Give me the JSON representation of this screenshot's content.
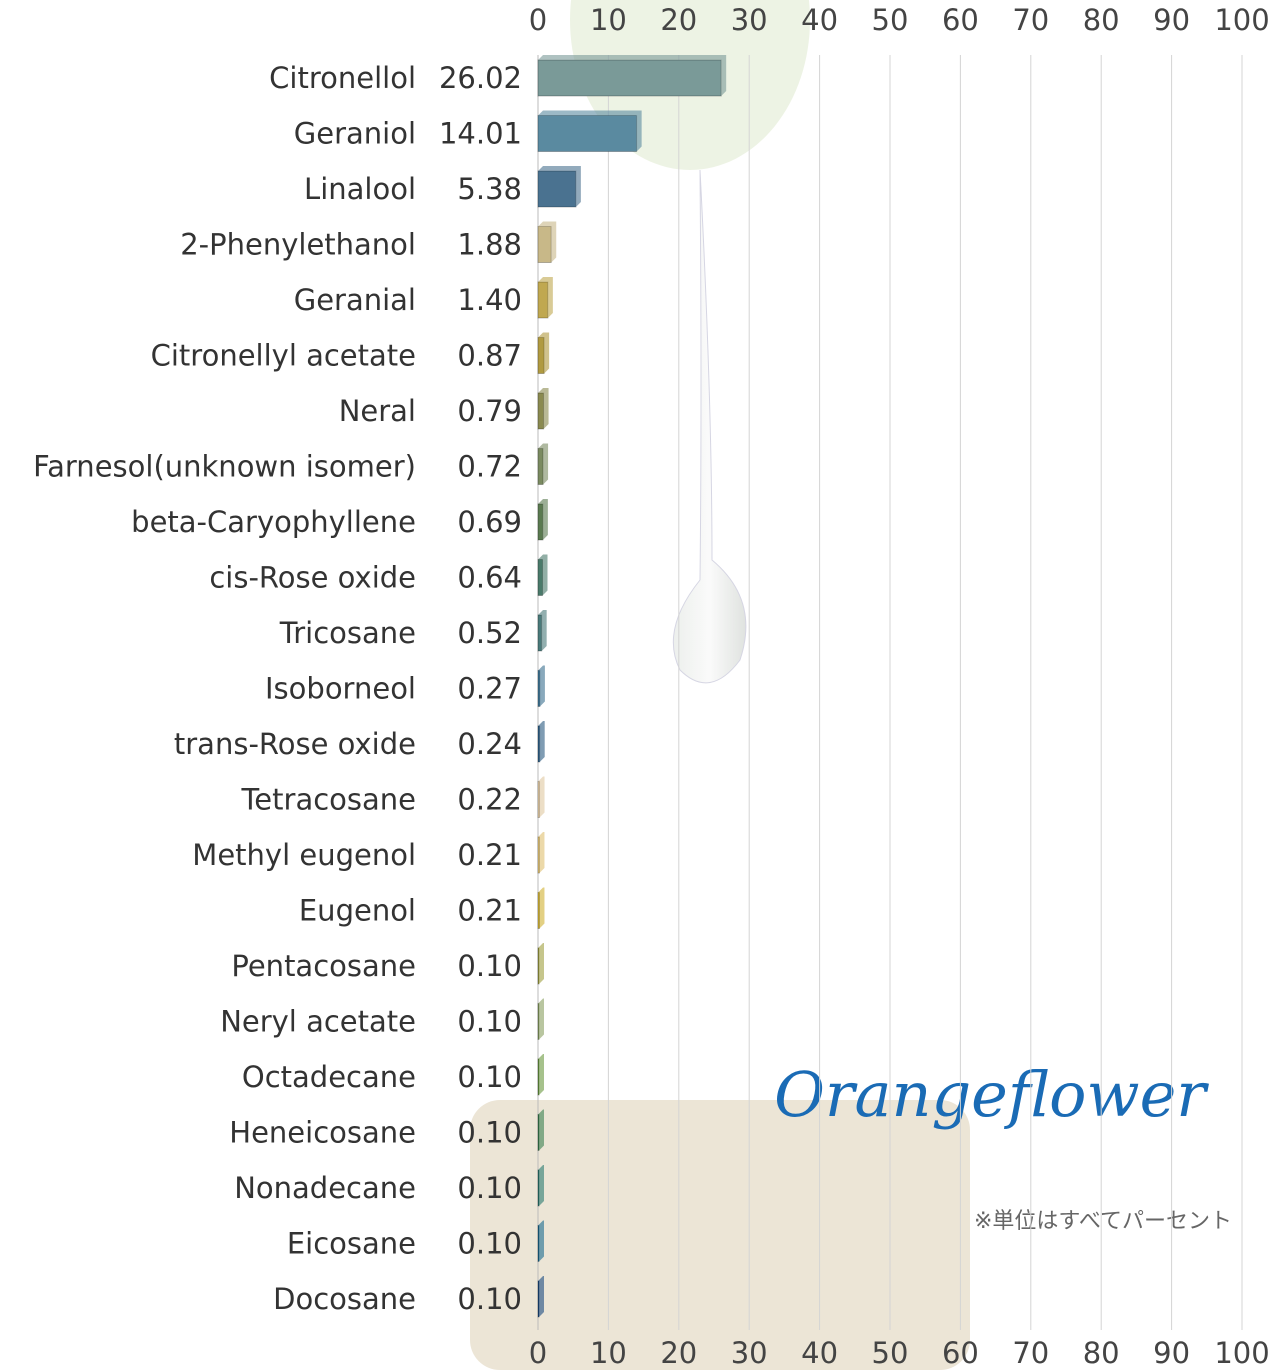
{
  "chart_data": {
    "type": "bar",
    "orientation": "horizontal",
    "categories": [
      "Citronellol",
      "Geraniol",
      "Linalool",
      "2-Phenylethanol",
      "Geranial",
      "Citronellyl acetate",
      "Neral",
      "Farnesol(unknown isomer)",
      "beta-Caryophyllene",
      "cis-Rose oxide",
      "Tricosane",
      "Isoborneol",
      "trans-Rose oxide",
      "Tetracosane",
      "Methyl eugenol",
      "Eugenol",
      "Pentacosane",
      "Neryl acetate",
      "Octadecane",
      "Heneicosane",
      "Nonadecane",
      "Eicosane",
      "Docosane"
    ],
    "values": [
      26.02,
      14.01,
      5.38,
      1.88,
      1.4,
      0.87,
      0.79,
      0.72,
      0.69,
      0.64,
      0.52,
      0.27,
      0.24,
      0.22,
      0.21,
      0.21,
      0.1,
      0.1,
      0.1,
      0.1,
      0.1,
      0.1,
      0.1
    ],
    "value_labels": [
      "26.02",
      "14.01",
      "5.38",
      "1.88",
      "1.40",
      "0.87",
      "0.79",
      "0.72",
      "0.69",
      "0.64",
      "0.52",
      "0.27",
      "0.24",
      "0.22",
      "0.21",
      "0.21",
      "0.10",
      "0.10",
      "0.10",
      "0.10",
      "0.10",
      "0.10",
      "0.10"
    ],
    "colors": [
      "#7a9a98",
      "#5a8aa0",
      "#4a7290",
      "#c8b888",
      "#c0a850",
      "#b09a40",
      "#8a8a50",
      "#7a8a60",
      "#5a7a50",
      "#4a7a6a",
      "#4a7a7a",
      "#3a7090",
      "#2a5a80",
      "#e0c8a0",
      "#e0c070",
      "#d0b030",
      "#a0a040",
      "#8aa060",
      "#6a9a40",
      "#3a8050",
      "#2a7a70",
      "#1a6a90",
      "#1a4a80"
    ],
    "xlim": [
      0,
      100
    ],
    "xticks": [
      0,
      10,
      20,
      30,
      40,
      50,
      60,
      70,
      80,
      90,
      100
    ],
    "grid": true
  },
  "logo": "Orangeflower",
  "note": "※単位はすべてパーセント"
}
